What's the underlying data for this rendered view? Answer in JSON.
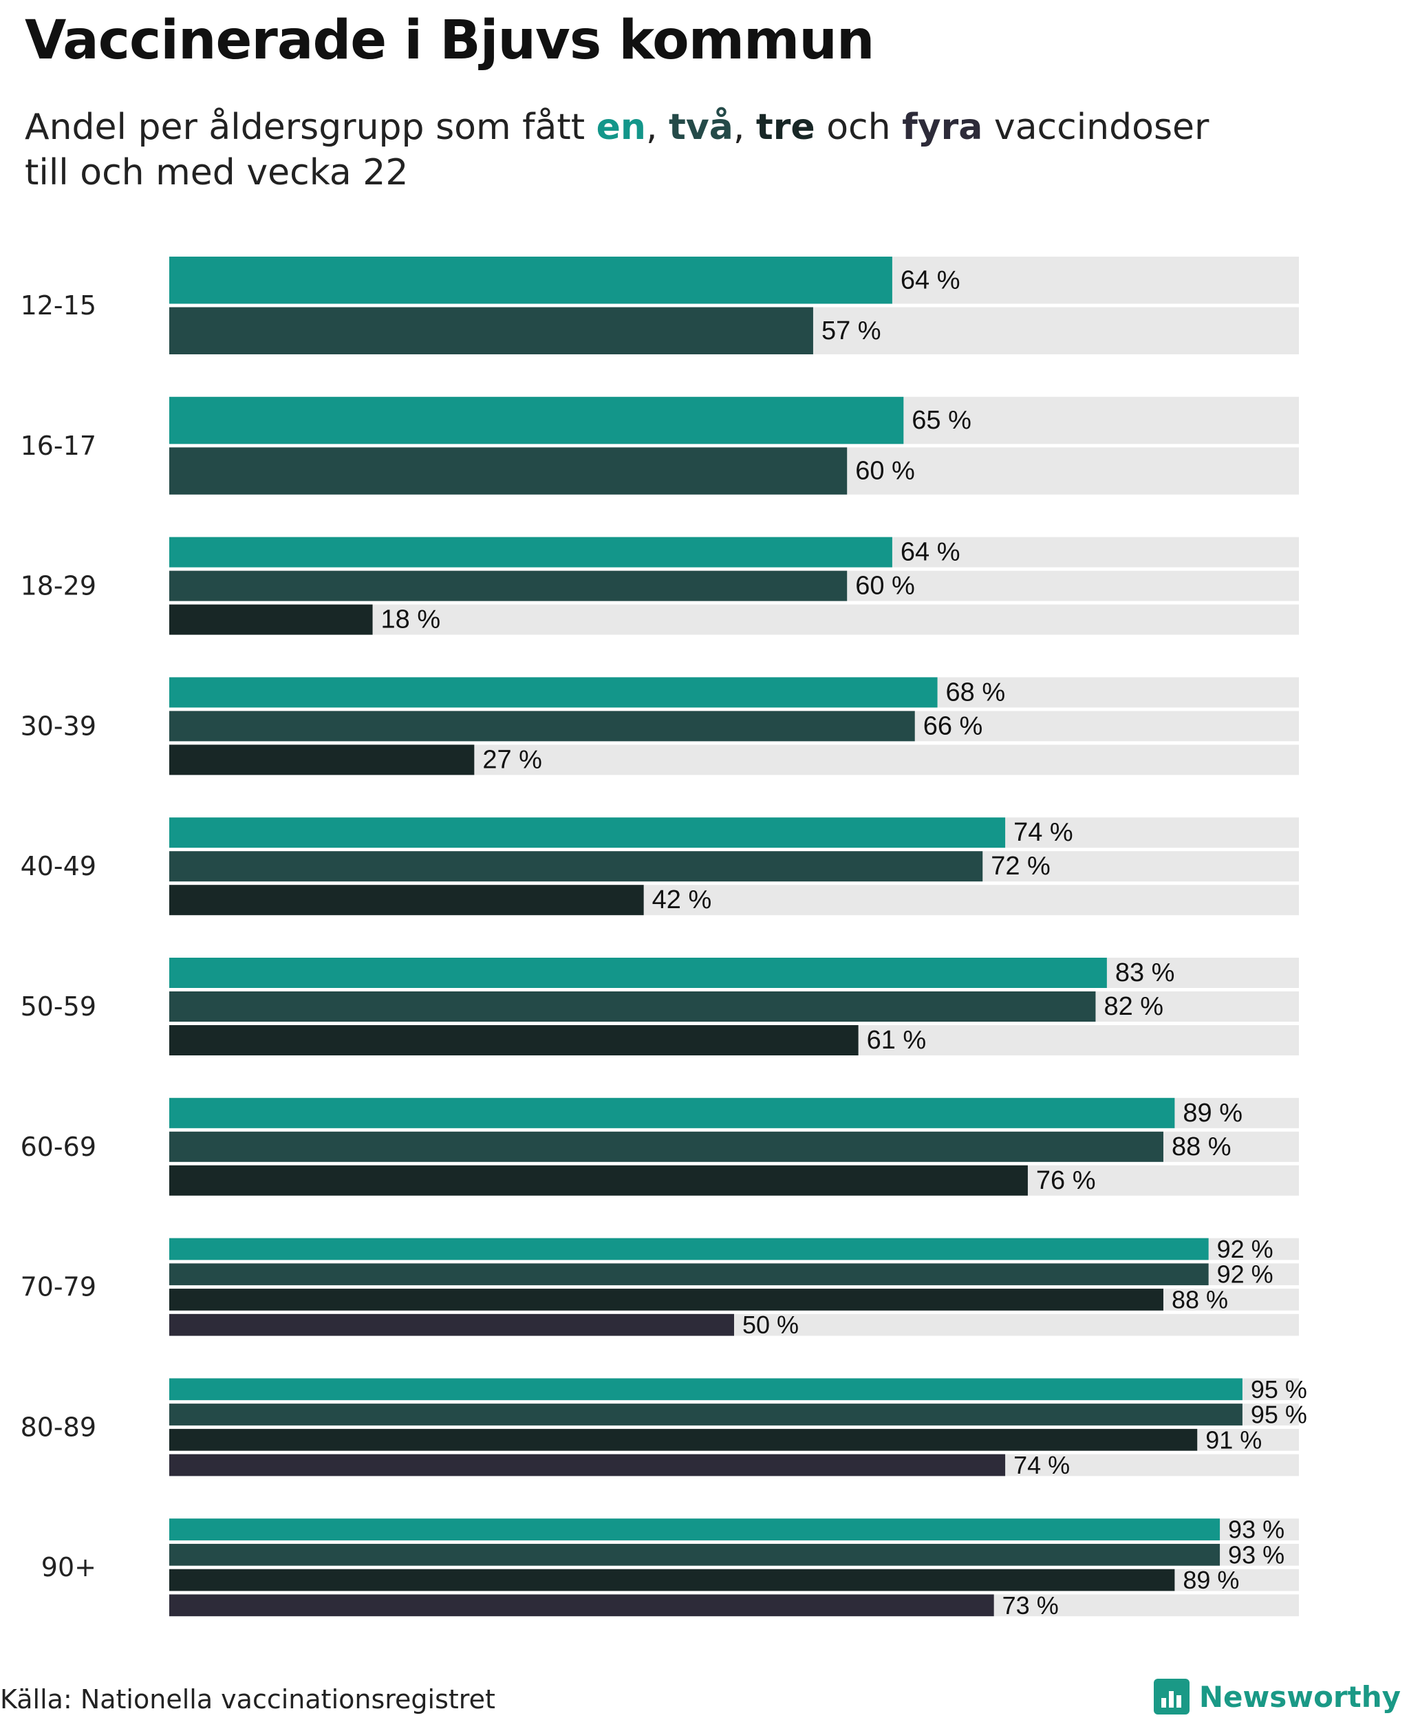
{
  "header": {
    "title": "Vaccinerade i Bjuvs kommun",
    "subtitle_pre": "Andel per åldersgrupp som fått ",
    "en": "en",
    "sep1": ", ",
    "tva": "två",
    "sep2": ", ",
    "tre": "tre",
    "och": " och ",
    "fyra": "fyra",
    "subtitle_post": " vaccindoser",
    "subtitle_line2": "till och med vecka 22"
  },
  "footer": {
    "source": "Källa: Nationella vaccinationsregistret",
    "brand": "Newsworthy"
  },
  "colors": {
    "dose1": "#13968a",
    "dose2": "#244a48",
    "dose3": "#182726",
    "dose4": "#2d2b39",
    "track": "#e8e8e8"
  },
  "chart_data": {
    "type": "bar",
    "orientation": "horizontal",
    "xlim": [
      0,
      100
    ],
    "unit": "%",
    "categories": [
      "12-15",
      "16-17",
      "18-29",
      "30-39",
      "40-49",
      "50-59",
      "60-69",
      "70-79",
      "80-89",
      "90+"
    ],
    "series": [
      {
        "name": "en",
        "values": [
          64,
          65,
          64,
          68,
          74,
          83,
          89,
          92,
          95,
          93
        ]
      },
      {
        "name": "två",
        "values": [
          57,
          60,
          60,
          66,
          72,
          82,
          88,
          92,
          95,
          93
        ]
      },
      {
        "name": "tre",
        "values": [
          null,
          null,
          18,
          27,
          42,
          61,
          76,
          88,
          91,
          89
        ]
      },
      {
        "name": "fyra",
        "values": [
          null,
          null,
          null,
          null,
          null,
          null,
          null,
          50,
          74,
          73
        ]
      }
    ],
    "grid": false,
    "legend": "none (series colored in subtitle)"
  }
}
